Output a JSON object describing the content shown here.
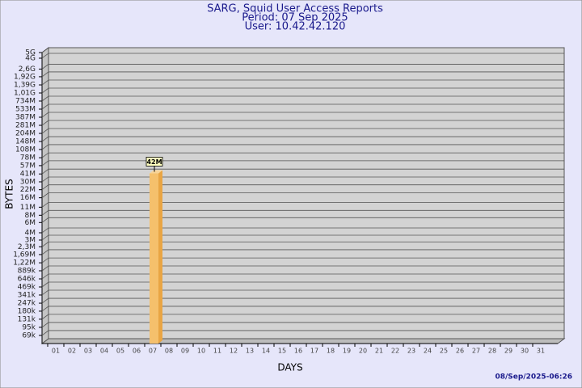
{
  "chart_data": {
    "type": "bar",
    "title_lines": [
      "SARG, Squid User Access Reports",
      "Period: 07 Sep 2025",
      "User: 10.42.42.120"
    ],
    "x_label": "DAYS",
    "y_label": "BYTES",
    "footer": "08/Sep/2025-06:26",
    "categories": [
      "01",
      "02",
      "03",
      "04",
      "05",
      "06",
      "07",
      "08",
      "09",
      "10",
      "11",
      "12",
      "13",
      "14",
      "15",
      "16",
      "17",
      "18",
      "19",
      "20",
      "21",
      "22",
      "23",
      "24",
      "25",
      "26",
      "27",
      "28",
      "29",
      "30",
      "31"
    ],
    "values": [
      null,
      null,
      null,
      null,
      null,
      null,
      42000000,
      null,
      null,
      null,
      null,
      null,
      null,
      null,
      null,
      null,
      null,
      null,
      null,
      null,
      null,
      null,
      null,
      null,
      null,
      null,
      null,
      null,
      null,
      null,
      null
    ],
    "value_labels": [
      null,
      null,
      null,
      null,
      null,
      null,
      "42M",
      null,
      null,
      null,
      null,
      null,
      null,
      null,
      null,
      null,
      null,
      null,
      null,
      null,
      null,
      null,
      null,
      null,
      null,
      null,
      null,
      null,
      null,
      null,
      null
    ],
    "color": "#f5c06c",
    "log": true,
    "grid": true,
    "ylim": [
      50000,
      5000000000
    ],
    "yticks": [
      {
        "value": 69000,
        "label": "69k"
      },
      {
        "value": 95000,
        "label": "95k"
      },
      {
        "value": 131000,
        "label": "131k"
      },
      {
        "value": 180000,
        "label": "180k"
      },
      {
        "value": 247000,
        "label": "247k"
      },
      {
        "value": 341000,
        "label": "341k"
      },
      {
        "value": 469000,
        "label": "469k"
      },
      {
        "value": 646000,
        "label": "646k"
      },
      {
        "value": 889000,
        "label": "889k"
      },
      {
        "value": 1220000,
        "label": "1,22M"
      },
      {
        "value": 1690000,
        "label": "1,69M"
      },
      {
        "value": 2300000,
        "label": "2,3M"
      },
      {
        "value": 3000000,
        "label": "3M"
      },
      {
        "value": 4000000,
        "label": "4M"
      },
      {
        "value": 6000000,
        "label": "6M"
      },
      {
        "value": 8000000,
        "label": "8M"
      },
      {
        "value": 11000000,
        "label": "11M"
      },
      {
        "value": 16000000,
        "label": "16M"
      },
      {
        "value": 22000000,
        "label": "22M"
      },
      {
        "value": 30000000,
        "label": "30M"
      },
      {
        "value": 41000000,
        "label": "41M"
      },
      {
        "value": 57000000,
        "label": "57M"
      },
      {
        "value": 78000000,
        "label": "78M"
      },
      {
        "value": 108000000,
        "label": "108M"
      },
      {
        "value": 148000000,
        "label": "148M"
      },
      {
        "value": 204000000,
        "label": "204M"
      },
      {
        "value": 281000000,
        "label": "281M"
      },
      {
        "value": 387000000,
        "label": "387M"
      },
      {
        "value": 533000000,
        "label": "533M"
      },
      {
        "value": 734000000,
        "label": "734M"
      },
      {
        "value": 1010000000,
        "label": "1,01G"
      },
      {
        "value": 1390000000,
        "label": "1,39G"
      },
      {
        "value": 1920000000,
        "label": "1,92G"
      },
      {
        "value": 2600000000,
        "label": "2,6G"
      },
      {
        "value": 4000000000,
        "label": "4G"
      },
      {
        "value": 5000000000,
        "label": "5G"
      }
    ]
  }
}
